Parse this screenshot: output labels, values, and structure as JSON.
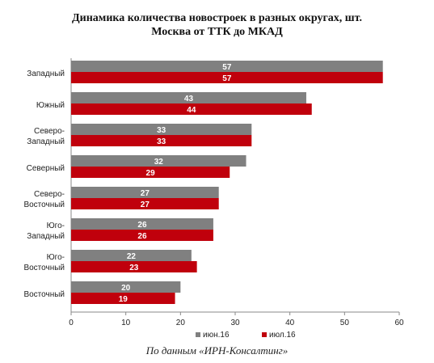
{
  "chart_data": {
    "type": "bar",
    "orientation": "horizontal",
    "title": "Динамика количества новостроек в разных округах, шт.",
    "subtitle": "Москва от ТТК до МКАД",
    "categories": [
      [
        "Западный"
      ],
      [
        "Южный"
      ],
      [
        "Северо-",
        "Западный"
      ],
      [
        "Северный"
      ],
      [
        "Северо-",
        "Восточный"
      ],
      [
        "Юго-",
        "Западный"
      ],
      [
        "Юго-",
        "Восточный"
      ],
      [
        "Восточный"
      ]
    ],
    "series": [
      {
        "name": "июн.16",
        "color": "#808080",
        "values": [
          57,
          43,
          33,
          32,
          27,
          26,
          22,
          20
        ]
      },
      {
        "name": "июл.16",
        "color": "#c0000c",
        "values": [
          57,
          44,
          33,
          29,
          27,
          26,
          23,
          19
        ]
      }
    ],
    "xlim": [
      0,
      60
    ],
    "xticks": [
      0,
      10,
      20,
      30,
      40,
      50,
      60
    ],
    "grid": "none",
    "legend_position": "bottom"
  },
  "source": "По данным «ИРН-Консалтинг»"
}
